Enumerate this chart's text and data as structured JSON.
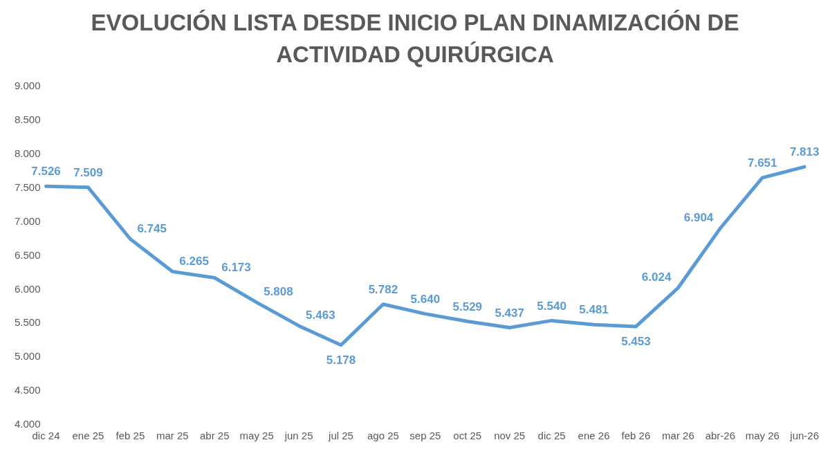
{
  "chart_data": {
    "type": "line",
    "title": "EVOLUCIÓN LISTA DESDE INICIO PLAN DINAMIZACIÓN DE ACTIVIDAD QUIRÚRGICA",
    "categories": [
      "dic 24",
      "ene 25",
      "feb 25",
      "mar 25",
      "abr 25",
      "may 25",
      "jun 25",
      "jul 25",
      "ago 25",
      "sep 25",
      "oct 25",
      "nov 25",
      "dic 25",
      "ene 26",
      "feb 26",
      "mar 26",
      "abr-26",
      "may 26",
      "jun-26"
    ],
    "series": [
      {
        "color": "#5b9bd5",
        "values": [
          7526,
          7509,
          6745,
          6265,
          6173,
          5808,
          5463,
          5178,
          5782,
          5640,
          5529,
          5437,
          5540,
          5481,
          5453,
          6024,
          6904,
          7651,
          7813
        ],
        "value_labels": [
          "7.526",
          "7.509",
          "6.745",
          "6.265",
          "6.173",
          "5.808",
          "5.463",
          "5.178",
          "5.782",
          "5.640",
          "5.529",
          "5.437",
          "5.540",
          "5.481",
          "5.453",
          "6.024",
          "6.904",
          "7.651",
          "7.813"
        ]
      }
    ],
    "ylim": [
      4000,
      9000
    ],
    "yticks": [
      {
        "value": 4000,
        "label": "4.000"
      },
      {
        "value": 4500,
        "label": "4.500"
      },
      {
        "value": 5000,
        "label": "5.000"
      },
      {
        "value": 5500,
        "label": "5.500"
      },
      {
        "value": 6000,
        "label": "6.000"
      },
      {
        "value": 6500,
        "label": "6.500"
      },
      {
        "value": 7000,
        "label": "7.000"
      },
      {
        "value": 7500,
        "label": "7.500"
      },
      {
        "value": 8000,
        "label": "8.000"
      },
      {
        "value": 8500,
        "label": "8.500"
      },
      {
        "value": 9000,
        "label": "9.000"
      }
    ],
    "grid": false,
    "legend": false,
    "marker": "none",
    "line_style": "solid"
  }
}
